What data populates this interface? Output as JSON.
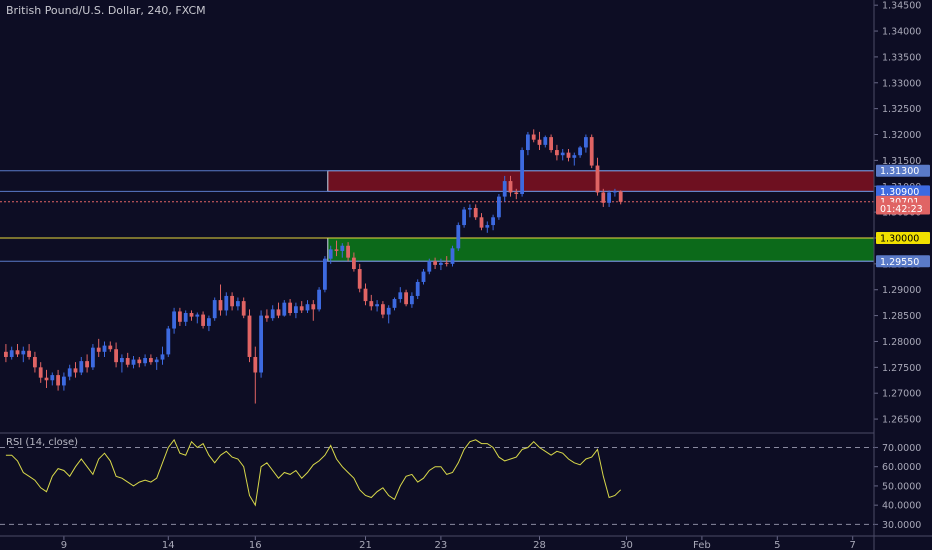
{
  "title": "British Pound/U.S. Dollar, 240, FXCM",
  "rsi_title": "RSI (14, close)",
  "colors": {
    "background": "#0d0d24",
    "up": "#3d6ae0",
    "down": "#e06464",
    "resistance_zone": "#6e1020",
    "support_zone": "#0c6a1a",
    "yellow_line": "#e8d83a",
    "blue_line": "#5a7ac8",
    "rsi_line": "#d8d84a"
  },
  "chart_data": [
    {
      "type": "candlestick",
      "title": "British Pound/U.S. Dollar, 240, FXCM",
      "ylim": [
        1.2625,
        1.346
      ],
      "y_ticks": [
        "1.34500",
        "1.34000",
        "1.33500",
        "1.33000",
        "1.32500",
        "1.32000",
        "1.31500",
        "1.31000",
        "1.30500",
        "1.30000",
        "1.29500",
        "1.29000",
        "1.28500",
        "1.28000",
        "1.27500",
        "1.27000",
        "1.26500"
      ],
      "x_ticks": [
        {
          "label": "9",
          "i": 10
        },
        {
          "label": "14",
          "i": 28
        },
        {
          "label": "16",
          "i": 43
        },
        {
          "label": "21",
          "i": 62
        },
        {
          "label": "23",
          "i": 75
        },
        {
          "label": "28",
          "i": 92
        },
        {
          "label": "30",
          "i": 107
        },
        {
          "label": "Feb",
          "i": 120
        },
        {
          "label": "5",
          "i": 133
        },
        {
          "label": "7",
          "i": 146
        }
      ],
      "x_slots": 151,
      "price_labels": [
        {
          "text": "1.31300",
          "value": 1.313,
          "bg": "#5a7ac8",
          "fg": "#ffffff"
        },
        {
          "text": "1.30900",
          "value": 1.309,
          "bg": "#3d6ae0",
          "fg": "#ffffff"
        },
        {
          "text": "1.30701",
          "value": 1.30701,
          "bg": "#e06464",
          "fg": "#ffffff"
        },
        {
          "text": "01:42:23",
          "value": 1.3057,
          "bg": "#e06464",
          "fg": "#ffffff"
        },
        {
          "text": "1.30000",
          "value": 1.3,
          "bg": "#f0e000",
          "fg": "#000000"
        },
        {
          "text": "1.29550",
          "value": 1.2955,
          "bg": "#5a7ac8",
          "fg": "#ffffff"
        }
      ],
      "zones": [
        {
          "name": "resistance",
          "top": 1.313,
          "bottom": 1.309,
          "start_i": 56
        },
        {
          "name": "support",
          "top": 1.3,
          "bottom": 1.2955,
          "start_i": 56
        }
      ],
      "hlines": [
        {
          "value": 1.313,
          "color": "#5a7ac8",
          "dash": false
        },
        {
          "value": 1.309,
          "color": "#5a7ac8",
          "dash": false
        },
        {
          "value": 1.3,
          "color": "#e8d83a",
          "dash": false
        },
        {
          "value": 1.2955,
          "color": "#5a7ac8",
          "dash": false
        },
        {
          "value": 1.30701,
          "color": "#e06464",
          "dash": true
        }
      ],
      "candles": [
        {
          "o": 1.278,
          "h": 1.2795,
          "l": 1.276,
          "c": 1.277
        },
        {
          "o": 1.277,
          "h": 1.279,
          "l": 1.2765,
          "c": 1.2783
        },
        {
          "o": 1.2783,
          "h": 1.2795,
          "l": 1.277,
          "c": 1.2775
        },
        {
          "o": 1.2775,
          "h": 1.279,
          "l": 1.276,
          "c": 1.2782
        },
        {
          "o": 1.2782,
          "h": 1.2795,
          "l": 1.2765,
          "c": 1.277
        },
        {
          "o": 1.277,
          "h": 1.278,
          "l": 1.274,
          "c": 1.275
        },
        {
          "o": 1.275,
          "h": 1.276,
          "l": 1.272,
          "c": 1.273
        },
        {
          "o": 1.273,
          "h": 1.2745,
          "l": 1.271,
          "c": 1.2725
        },
        {
          "o": 1.2725,
          "h": 1.274,
          "l": 1.2715,
          "c": 1.2735
        },
        {
          "o": 1.2735,
          "h": 1.2745,
          "l": 1.2705,
          "c": 1.2715
        },
        {
          "o": 1.2715,
          "h": 1.274,
          "l": 1.2705,
          "c": 1.2732
        },
        {
          "o": 1.2732,
          "h": 1.2755,
          "l": 1.2725,
          "c": 1.2748
        },
        {
          "o": 1.2748,
          "h": 1.276,
          "l": 1.273,
          "c": 1.274
        },
        {
          "o": 1.274,
          "h": 1.277,
          "l": 1.2735,
          "c": 1.2762
        },
        {
          "o": 1.2762,
          "h": 1.2775,
          "l": 1.274,
          "c": 1.275
        },
        {
          "o": 1.275,
          "h": 1.2795,
          "l": 1.2745,
          "c": 1.2788
        },
        {
          "o": 1.2788,
          "h": 1.2805,
          "l": 1.277,
          "c": 1.278
        },
        {
          "o": 1.278,
          "h": 1.28,
          "l": 1.277,
          "c": 1.2792
        },
        {
          "o": 1.2792,
          "h": 1.28,
          "l": 1.278,
          "c": 1.2785
        },
        {
          "o": 1.2785,
          "h": 1.2798,
          "l": 1.275,
          "c": 1.276
        },
        {
          "o": 1.276,
          "h": 1.2775,
          "l": 1.274,
          "c": 1.2768
        },
        {
          "o": 1.2768,
          "h": 1.2778,
          "l": 1.275,
          "c": 1.2755
        },
        {
          "o": 1.2755,
          "h": 1.2772,
          "l": 1.2748,
          "c": 1.2765
        },
        {
          "o": 1.2765,
          "h": 1.277,
          "l": 1.275,
          "c": 1.2758
        },
        {
          "o": 1.2758,
          "h": 1.2775,
          "l": 1.2752,
          "c": 1.2768
        },
        {
          "o": 1.2768,
          "h": 1.2775,
          "l": 1.2755,
          "c": 1.276
        },
        {
          "o": 1.276,
          "h": 1.277,
          "l": 1.2745,
          "c": 1.2765
        },
        {
          "o": 1.2765,
          "h": 1.279,
          "l": 1.2755,
          "c": 1.2775
        },
        {
          "o": 1.2775,
          "h": 1.283,
          "l": 1.277,
          "c": 1.2825
        },
        {
          "o": 1.2825,
          "h": 1.2865,
          "l": 1.2815,
          "c": 1.2858
        },
        {
          "o": 1.2858,
          "h": 1.2865,
          "l": 1.283,
          "c": 1.2838
        },
        {
          "o": 1.2838,
          "h": 1.286,
          "l": 1.283,
          "c": 1.2855
        },
        {
          "o": 1.2855,
          "h": 1.286,
          "l": 1.284,
          "c": 1.2848
        },
        {
          "o": 1.2848,
          "h": 1.2856,
          "l": 1.2835,
          "c": 1.2852
        },
        {
          "o": 1.2852,
          "h": 1.2858,
          "l": 1.2825,
          "c": 1.283
        },
        {
          "o": 1.283,
          "h": 1.285,
          "l": 1.282,
          "c": 1.2845
        },
        {
          "o": 1.2845,
          "h": 1.2885,
          "l": 1.284,
          "c": 1.288
        },
        {
          "o": 1.288,
          "h": 1.291,
          "l": 1.285,
          "c": 1.286
        },
        {
          "o": 1.286,
          "h": 1.2895,
          "l": 1.285,
          "c": 1.2888
        },
        {
          "o": 1.2888,
          "h": 1.2895,
          "l": 1.286,
          "c": 1.2868
        },
        {
          "o": 1.2868,
          "h": 1.2885,
          "l": 1.286,
          "c": 1.2878
        },
        {
          "o": 1.2878,
          "h": 1.2885,
          "l": 1.2845,
          "c": 1.285
        },
        {
          "o": 1.285,
          "h": 1.2862,
          "l": 1.276,
          "c": 1.277
        },
        {
          "o": 1.277,
          "h": 1.279,
          "l": 1.268,
          "c": 1.274
        },
        {
          "o": 1.274,
          "h": 1.286,
          "l": 1.273,
          "c": 1.285
        },
        {
          "o": 1.285,
          "h": 1.2862,
          "l": 1.2838,
          "c": 1.2845
        },
        {
          "o": 1.2845,
          "h": 1.287,
          "l": 1.284,
          "c": 1.2862
        },
        {
          "o": 1.2862,
          "h": 1.2875,
          "l": 1.2845,
          "c": 1.285
        },
        {
          "o": 1.285,
          "h": 1.288,
          "l": 1.2848,
          "c": 1.2875
        },
        {
          "o": 1.2875,
          "h": 1.2882,
          "l": 1.285,
          "c": 1.2855
        },
        {
          "o": 1.2855,
          "h": 1.2875,
          "l": 1.2845,
          "c": 1.2868
        },
        {
          "o": 1.2868,
          "h": 1.2878,
          "l": 1.2855,
          "c": 1.286
        },
        {
          "o": 1.286,
          "h": 1.288,
          "l": 1.2855,
          "c": 1.2872
        },
        {
          "o": 1.2872,
          "h": 1.288,
          "l": 1.284,
          "c": 1.2862
        },
        {
          "o": 1.2862,
          "h": 1.2905,
          "l": 1.2858,
          "c": 1.29
        },
        {
          "o": 1.29,
          "h": 1.2965,
          "l": 1.2895,
          "c": 1.296
        },
        {
          "o": 1.296,
          "h": 1.2985,
          "l": 1.295,
          "c": 1.2978
        },
        {
          "o": 1.2978,
          "h": 1.2995,
          "l": 1.2965,
          "c": 1.2975
        },
        {
          "o": 1.2975,
          "h": 1.299,
          "l": 1.2962,
          "c": 1.2985
        },
        {
          "o": 1.2985,
          "h": 1.2992,
          "l": 1.2955,
          "c": 1.2962
        },
        {
          "o": 1.2962,
          "h": 1.2972,
          "l": 1.2935,
          "c": 1.294
        },
        {
          "o": 1.294,
          "h": 1.295,
          "l": 1.2895,
          "c": 1.2902
        },
        {
          "o": 1.2902,
          "h": 1.2912,
          "l": 1.287,
          "c": 1.2878
        },
        {
          "o": 1.2878,
          "h": 1.289,
          "l": 1.286,
          "c": 1.2868
        },
        {
          "o": 1.2868,
          "h": 1.288,
          "l": 1.2858,
          "c": 1.2872
        },
        {
          "o": 1.2872,
          "h": 1.2878,
          "l": 1.2845,
          "c": 1.2852
        },
        {
          "o": 1.2852,
          "h": 1.287,
          "l": 1.2835,
          "c": 1.2865
        },
        {
          "o": 1.2865,
          "h": 1.2885,
          "l": 1.286,
          "c": 1.2882
        },
        {
          "o": 1.2882,
          "h": 1.2905,
          "l": 1.2875,
          "c": 1.2895
        },
        {
          "o": 1.2895,
          "h": 1.29,
          "l": 1.2868,
          "c": 1.2872
        },
        {
          "o": 1.2872,
          "h": 1.2895,
          "l": 1.2865,
          "c": 1.2888
        },
        {
          "o": 1.2888,
          "h": 1.292,
          "l": 1.2882,
          "c": 1.2915
        },
        {
          "o": 1.2915,
          "h": 1.294,
          "l": 1.291,
          "c": 1.2935
        },
        {
          "o": 1.2935,
          "h": 1.296,
          "l": 1.293,
          "c": 1.2955
        },
        {
          "o": 1.2955,
          "h": 1.2962,
          "l": 1.294,
          "c": 1.2948
        },
        {
          "o": 1.2948,
          "h": 1.296,
          "l": 1.2938,
          "c": 1.2952
        },
        {
          "o": 1.2952,
          "h": 1.2965,
          "l": 1.2945,
          "c": 1.295
        },
        {
          "o": 1.295,
          "h": 1.2985,
          "l": 1.2945,
          "c": 1.298
        },
        {
          "o": 1.298,
          "h": 1.303,
          "l": 1.2975,
          "c": 1.3025
        },
        {
          "o": 1.3025,
          "h": 1.306,
          "l": 1.302,
          "c": 1.3055
        },
        {
          "o": 1.3055,
          "h": 1.3065,
          "l": 1.304,
          "c": 1.3058
        },
        {
          "o": 1.3058,
          "h": 1.3065,
          "l": 1.3035,
          "c": 1.304
        },
        {
          "o": 1.304,
          "h": 1.3048,
          "l": 1.3015,
          "c": 1.302
        },
        {
          "o": 1.302,
          "h": 1.3032,
          "l": 1.301,
          "c": 1.3025
        },
        {
          "o": 1.3025,
          "h": 1.3045,
          "l": 1.3015,
          "c": 1.304
        },
        {
          "o": 1.304,
          "h": 1.3085,
          "l": 1.3035,
          "c": 1.308
        },
        {
          "o": 1.308,
          "h": 1.312,
          "l": 1.307,
          "c": 1.311
        },
        {
          "o": 1.311,
          "h": 1.312,
          "l": 1.308,
          "c": 1.3088
        },
        {
          "o": 1.3088,
          "h": 1.3095,
          "l": 1.3075,
          "c": 1.3085
        },
        {
          "o": 1.3085,
          "h": 1.3175,
          "l": 1.308,
          "c": 1.317
        },
        {
          "o": 1.317,
          "h": 1.3205,
          "l": 1.316,
          "c": 1.32
        },
        {
          "o": 1.32,
          "h": 1.321,
          "l": 1.3185,
          "c": 1.319
        },
        {
          "o": 1.319,
          "h": 1.3205,
          "l": 1.317,
          "c": 1.318
        },
        {
          "o": 1.318,
          "h": 1.3198,
          "l": 1.3175,
          "c": 1.3195
        },
        {
          "o": 1.3195,
          "h": 1.32,
          "l": 1.3165,
          "c": 1.317
        },
        {
          "o": 1.317,
          "h": 1.318,
          "l": 1.315,
          "c": 1.316
        },
        {
          "o": 1.316,
          "h": 1.3172,
          "l": 1.315,
          "c": 1.3165
        },
        {
          "o": 1.3165,
          "h": 1.3172,
          "l": 1.3148,
          "c": 1.3155
        },
        {
          "o": 1.3155,
          "h": 1.3165,
          "l": 1.314,
          "c": 1.316
        },
        {
          "o": 1.316,
          "h": 1.3178,
          "l": 1.3155,
          "c": 1.3175
        },
        {
          "o": 1.3175,
          "h": 1.32,
          "l": 1.3165,
          "c": 1.3195
        },
        {
          "o": 1.3195,
          "h": 1.32,
          "l": 1.3135,
          "c": 1.314
        },
        {
          "o": 1.314,
          "h": 1.3155,
          "l": 1.3082,
          "c": 1.3088
        },
        {
          "o": 1.3088,
          "h": 1.3095,
          "l": 1.306,
          "c": 1.3068
        },
        {
          "o": 1.3068,
          "h": 1.3092,
          "l": 1.306,
          "c": 1.3088
        },
        {
          "o": 1.3088,
          "h": 1.3095,
          "l": 1.308,
          "c": 1.309
        },
        {
          "o": 1.309,
          "h": 1.3092,
          "l": 1.3065,
          "c": 1.307
        }
      ]
    },
    {
      "type": "line",
      "title": "RSI (14, close)",
      "ylim": [
        25,
        77
      ],
      "y_ticks": [
        "70.0000",
        "60.0000",
        "50.0000",
        "40.0000",
        "30.0000"
      ],
      "hlines": [
        70,
        30
      ],
      "series": [
        {
          "name": "RSI (14, close)",
          "values": [
            66,
            66,
            63,
            57,
            55,
            53,
            49,
            47,
            55,
            59,
            58,
            55,
            60,
            64,
            60,
            56,
            64,
            67,
            63,
            55,
            54,
            52,
            50,
            52,
            53,
            52,
            54,
            62,
            70,
            74,
            67,
            66,
            73,
            70,
            72,
            66,
            62,
            66,
            68,
            65,
            64,
            60,
            45,
            40,
            60,
            62,
            58,
            54,
            57,
            56,
            58,
            54,
            57,
            61,
            63,
            66,
            71,
            64,
            60,
            57,
            54,
            48,
            45,
            44,
            47,
            49,
            45,
            43,
            50,
            55,
            56,
            52,
            54,
            58,
            60,
            60,
            56,
            57,
            62,
            69,
            73,
            74,
            72,
            72,
            70,
            65,
            63,
            64,
            65,
            69,
            70,
            73,
            70,
            68,
            66,
            68,
            67,
            64,
            62,
            61,
            64,
            65,
            69,
            55,
            44,
            45,
            48
          ]
        }
      ]
    }
  ]
}
